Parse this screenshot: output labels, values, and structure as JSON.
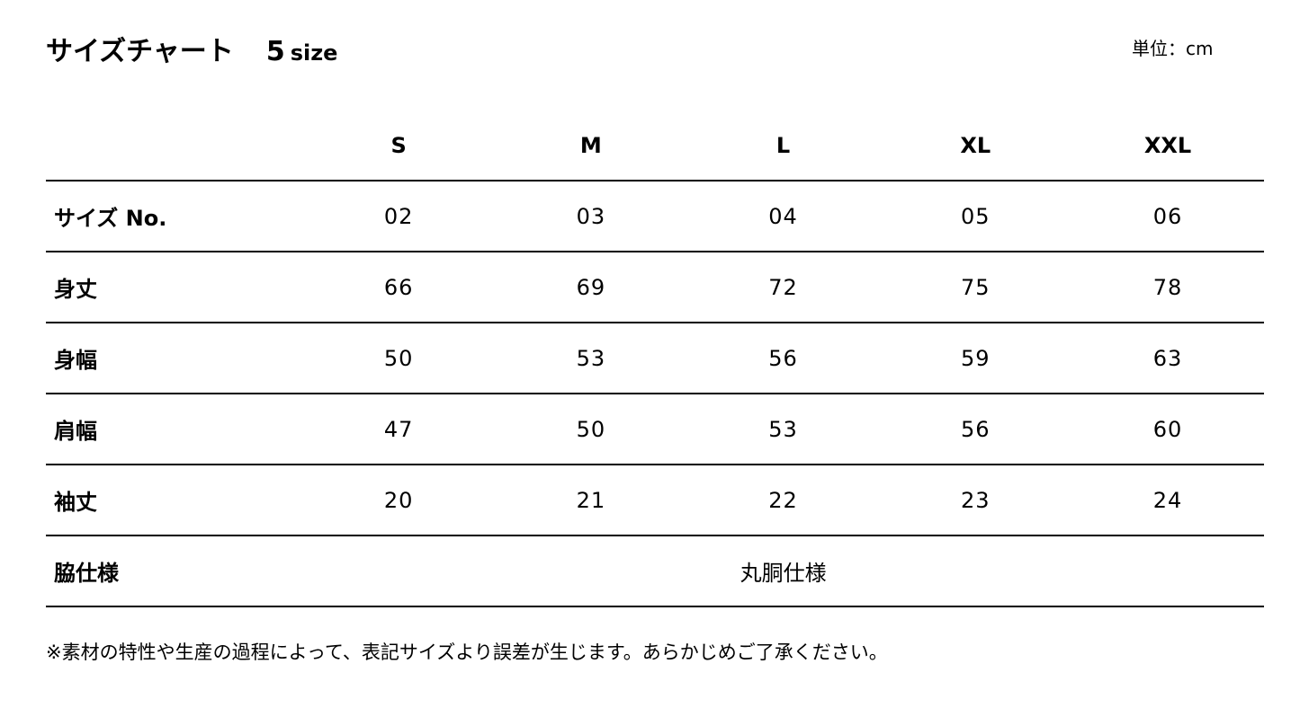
{
  "title": {
    "main": "サイズチャート",
    "count": "5",
    "count_unit": "size"
  },
  "unit": "単位：cm",
  "table": {
    "headers": [
      "S",
      "M",
      "L",
      "XL",
      "XXL"
    ],
    "rows": [
      {
        "label": "サイズ No.",
        "values": [
          "02",
          "03",
          "04",
          "05",
          "06"
        ]
      },
      {
        "label": "身丈",
        "values": [
          "66",
          "69",
          "72",
          "75",
          "78"
        ]
      },
      {
        "label": "身幅",
        "values": [
          "50",
          "53",
          "56",
          "59",
          "63"
        ]
      },
      {
        "label": "肩幅",
        "values": [
          "47",
          "50",
          "53",
          "56",
          "60"
        ]
      },
      {
        "label": "袖丈",
        "values": [
          "20",
          "21",
          "22",
          "23",
          "24"
        ]
      }
    ],
    "side_spec": {
      "label": "脇仕様",
      "value": "丸胴仕様"
    }
  },
  "note": "※素材の特性や生産の過程によって、表記サイズより誤差が生じます。あらかじめご了承ください。"
}
